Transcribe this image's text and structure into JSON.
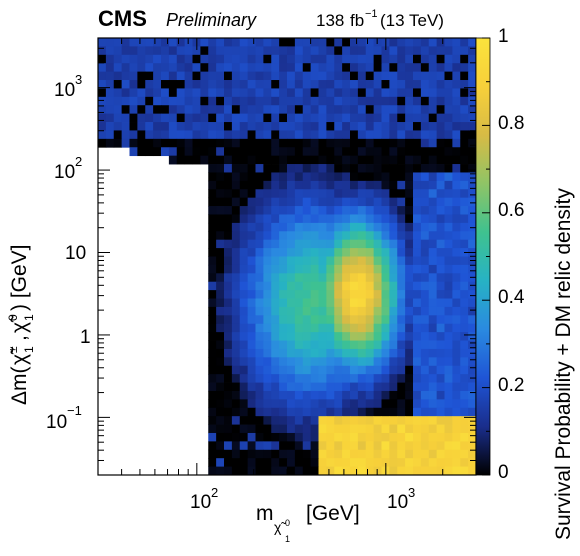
{
  "header": {
    "experiment": "CMS",
    "status": "Preliminary",
    "lumi": "138",
    "lumi_unit": "fb",
    "lumi_exp": "−1",
    "energy": "(13 TeV)"
  },
  "chart_data": {
    "type": "heatmap",
    "title": "",
    "x_axis": {
      "label_main": "m",
      "label_sub": "χ̃",
      "label_sub_sup": "0",
      "label_sub_sub": "1",
      "label_unit": "[GeV]",
      "scale": "log",
      "range": [
        30,
        3000
      ],
      "ticks": [
        {
          "value": 100,
          "base": "10",
          "exp": "2"
        },
        {
          "value": 1000,
          "base": "10",
          "exp": "3"
        }
      ]
    },
    "y_axis": {
      "label": "Δm(χ̃±1, χ̃01) [GeV]",
      "label_parts": {
        "prefix": "Δm(",
        "chi": "χ̃",
        "pm": "±",
        "zero": "0",
        "one": "1",
        "suffix": ") [GeV]"
      },
      "scale": "log",
      "range": [
        0.02,
        4000
      ],
      "ticks": [
        {
          "value": 0.1,
          "base": "10",
          "exp": "−1"
        },
        {
          "value": 1,
          "text": "1"
        },
        {
          "value": 10,
          "text": "10"
        },
        {
          "value": 100,
          "base": "10",
          "exp": "2"
        },
        {
          "value": 1000,
          "base": "10",
          "exp": "3"
        }
      ]
    },
    "z_axis": {
      "label": "Survival Probability + DM relic density",
      "range": [
        0,
        1
      ],
      "ticks": [
        "0",
        "0.2",
        "0.4",
        "0.6",
        "0.8",
        "1"
      ],
      "colormap": [
        "#000000",
        "#1a2e8c",
        "#1f55d6",
        "#2a8ae0",
        "#27b2c4",
        "#3fc28f",
        "#8fc466",
        "#d7bb45",
        "#f7d03a",
        "#fbe33c"
      ]
    },
    "regions": [
      {
        "name": "excluded-low-mass",
        "description_value": "no samples",
        "x_range": [
          30,
          100
        ],
        "y_range": [
          0.02,
          30
        ]
      },
      {
        "name": "high-dm-blue-band",
        "x_range": [
          30,
          3000
        ],
        "y_range": [
          200,
          4000
        ],
        "value": 0.15
      },
      {
        "name": "wino-like-peak",
        "x_range": [
          500,
          1100
        ],
        "y_range": [
          0.3,
          50
        ],
        "value": 0.9
      },
      {
        "name": "compressed-peak",
        "x_range": [
          600,
          3000
        ],
        "y_range": [
          0.02,
          0.1
        ],
        "value": 0.95
      }
    ],
    "grid": false,
    "legend": "none"
  }
}
